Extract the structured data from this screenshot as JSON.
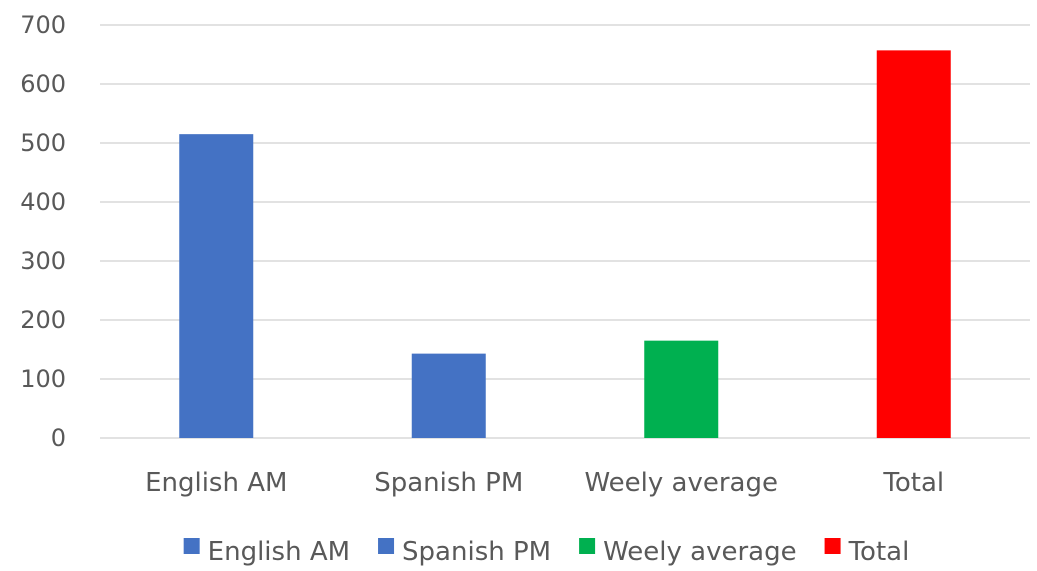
{
  "chart_data": {
    "type": "bar",
    "title": "",
    "xlabel": "",
    "ylabel": "",
    "categories": [
      "English AM",
      "Spanish PM",
      "Weely average",
      "Total"
    ],
    "values": [
      515,
      143,
      165,
      657
    ],
    "colors": [
      "#4472c4",
      "#4472c4",
      "#00b050",
      "#ff0000"
    ],
    "ylim": [
      0,
      700
    ],
    "yticks": [
      0,
      100,
      200,
      300,
      400,
      500,
      600,
      700
    ],
    "grid": true,
    "legend": {
      "placement": "bottom",
      "entries": [
        {
          "label": "English AM",
          "color": "#4472c4"
        },
        {
          "label": "Spanish PM",
          "color": "#4472c4"
        },
        {
          "label": "Weely average",
          "color": "#00b050"
        },
        {
          "label": "Total",
          "color": "#ff0000"
        }
      ]
    }
  }
}
